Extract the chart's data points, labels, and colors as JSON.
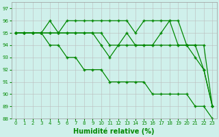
{
  "bg_color": "#cff0eb",
  "grid_color": "#bbbbbb",
  "line_color": "#008800",
  "marker": "+",
  "xlabel": "Humidité relative (%)",
  "xlabel_fontsize": 7,
  "xlim": [
    -0.5,
    23.5
  ],
  "ylim": [
    88,
    97.5
  ],
  "yticks": [
    88,
    89,
    90,
    91,
    92,
    93,
    94,
    95,
    96,
    97
  ],
  "xticks": [
    0,
    1,
    2,
    3,
    4,
    5,
    6,
    7,
    8,
    9,
    10,
    11,
    12,
    13,
    14,
    15,
    16,
    17,
    18,
    19,
    20,
    21,
    22,
    23
  ],
  "series": [
    [
      95,
      95,
      95,
      95,
      96,
      95,
      96,
      96,
      96,
      96,
      96,
      96,
      96,
      96,
      95,
      96,
      96,
      96,
      96,
      96,
      94,
      93,
      92,
      89
    ],
    [
      95,
      95,
      95,
      95,
      95,
      95,
      95,
      95,
      95,
      95,
      94,
      93,
      94,
      95,
      94,
      94,
      94,
      95,
      96,
      94,
      94,
      94,
      92,
      89
    ],
    [
      95,
      95,
      95,
      95,
      95,
      95,
      95,
      95,
      95,
      95,
      95,
      94,
      94,
      94,
      94,
      94,
      94,
      94,
      94,
      94,
      94,
      94,
      94,
      89
    ],
    [
      95,
      95,
      95,
      95,
      94,
      94,
      93,
      93,
      92,
      92,
      92,
      91,
      91,
      91,
      91,
      91,
      90,
      90,
      90,
      90,
      90,
      89,
      89,
      88
    ]
  ]
}
